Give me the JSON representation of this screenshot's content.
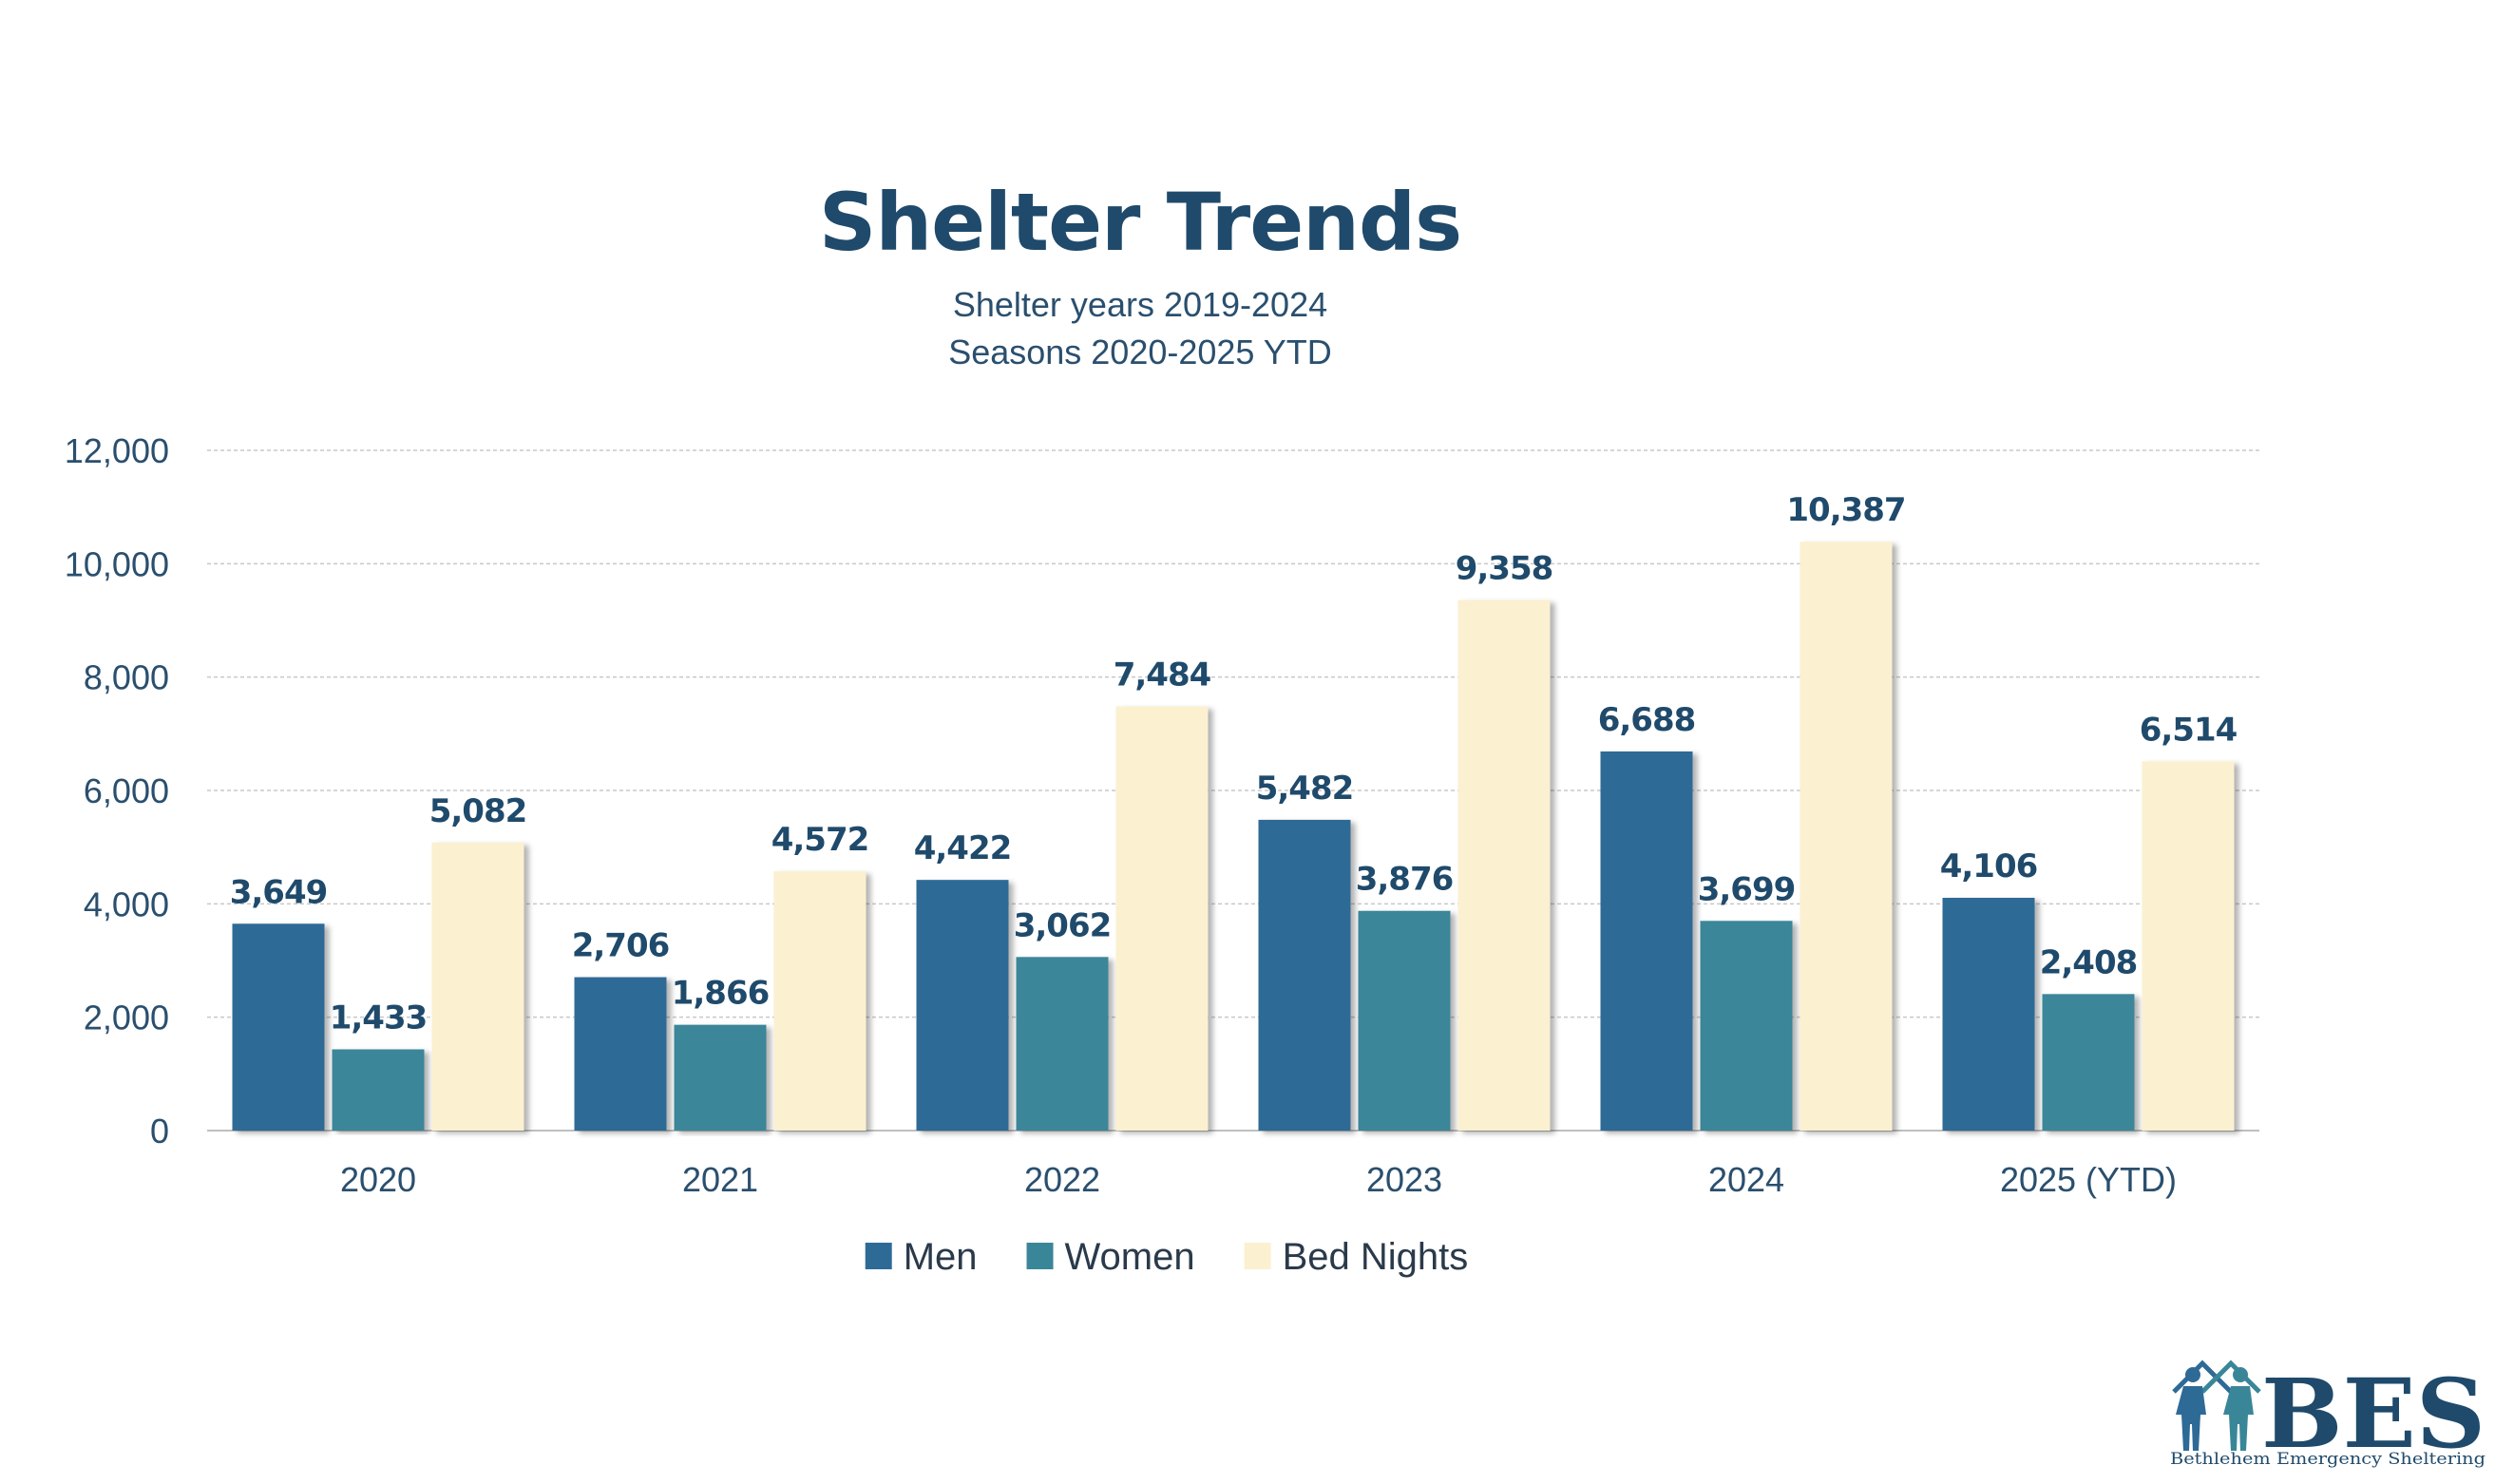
{
  "chart_data": {
    "type": "bar",
    "title": "Shelter Trends",
    "subtitle_lines": [
      "Shelter years 2019-2024",
      "Seasons 2020-2025 YTD"
    ],
    "categories": [
      "2020",
      "2021",
      "2022",
      "2023",
      "2024",
      "2025 (YTD)"
    ],
    "series": [
      {
        "name": "Men",
        "values": [
          3649,
          2706,
          4422,
          5482,
          6688,
          4106
        ],
        "labels": [
          "3,649",
          "2,706",
          "4,422",
          "5,482",
          "6,688",
          "4,106"
        ]
      },
      {
        "name": "Women",
        "values": [
          1433,
          1866,
          3062,
          3876,
          3699,
          2408
        ],
        "labels": [
          "1,433",
          "1,866",
          "3,062",
          "3,876",
          "3,699",
          "2,408"
        ]
      },
      {
        "name": "Bed Nights",
        "values": [
          5082,
          4572,
          7484,
          9358,
          10387,
          6514
        ],
        "labels": [
          "5,082",
          "4,572",
          "7,484",
          "9,358",
          "10,387",
          "6,514"
        ]
      }
    ],
    "ylim": [
      0,
      12000
    ],
    "yticks": [
      0,
      2000,
      4000,
      6000,
      8000,
      10000,
      12000
    ],
    "ytick_labels": [
      "0",
      "2,000",
      "4,000",
      "6,000",
      "8,000",
      "10,000",
      "12,000"
    ],
    "grid": true,
    "legend_position": "bottom",
    "colors": {
      "Men": "#2e6a96",
      "Women": "#3a8699",
      "Bed Nights": "#fbf0d0"
    },
    "label_color": "#1f4a6b"
  },
  "logo": {
    "text": "BES",
    "tagline": "Bethlehem Emergency Sheltering",
    "icon": "people-house-icon"
  }
}
